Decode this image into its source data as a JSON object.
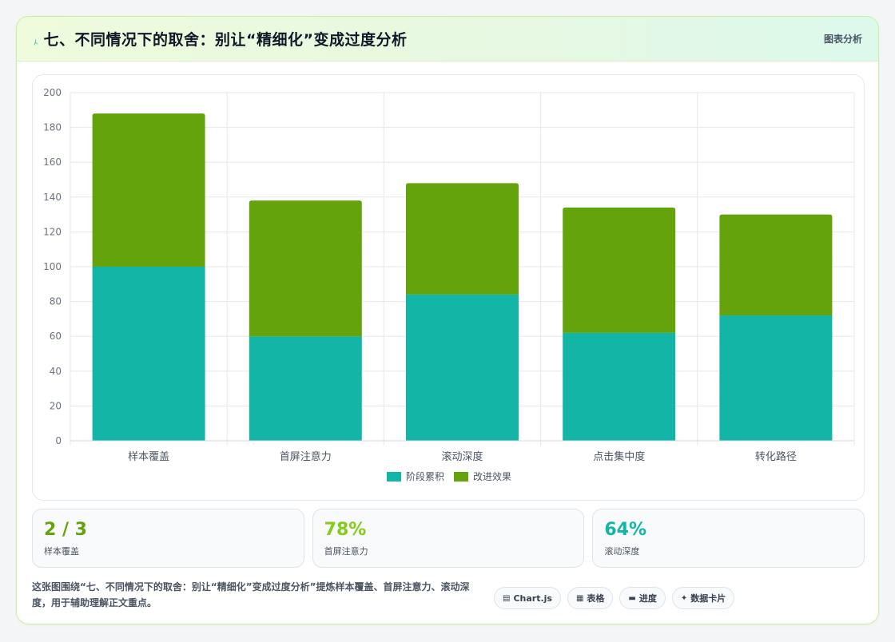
{
  "header": {
    "icon": "lightning-icon",
    "title": "七、不同情况下的取舍：别让“精细化”变成过度分析",
    "tag": "图表分析"
  },
  "colors": {
    "series1": "#13b5a7",
    "series2": "#65a30d",
    "stat1": "#65a30d",
    "stat2": "#84cc16",
    "stat3": "#13b5a7"
  },
  "chart_data": {
    "type": "bar",
    "stacked": true,
    "categories": [
      "样本覆盖",
      "首屏注意力",
      "滚动深度",
      "点击集中度",
      "转化路径"
    ],
    "series": [
      {
        "name": "阶段累积",
        "values": [
          100,
          60,
          84,
          62,
          72
        ]
      },
      {
        "name": "改进效果",
        "values": [
          88,
          78,
          64,
          72,
          58
        ]
      }
    ],
    "ylim": [
      0,
      200
    ],
    "yticks": [
      0,
      20,
      40,
      60,
      80,
      100,
      120,
      140,
      160,
      180,
      200
    ],
    "grid": true,
    "legend": "bottom"
  },
  "stats": [
    {
      "value": "2 / 3",
      "label": "样本覆盖"
    },
    {
      "value": "78%",
      "label": "首屏注意力"
    },
    {
      "value": "64%",
      "label": "滚动深度"
    }
  ],
  "footer": {
    "description": "这张图围绕“七、不同情况下的取舍：别让“精细化”变成过度分析”提炼样本覆盖、首屏注意力、滚动深度，用于辅助理解正文重点。",
    "chips": [
      {
        "icon": "chart-icon",
        "label": "Chart.js"
      },
      {
        "icon": "table-icon",
        "label": "表格"
      },
      {
        "icon": "progress-icon",
        "label": "进度"
      },
      {
        "icon": "card-icon",
        "label": "数据卡片"
      }
    ]
  }
}
